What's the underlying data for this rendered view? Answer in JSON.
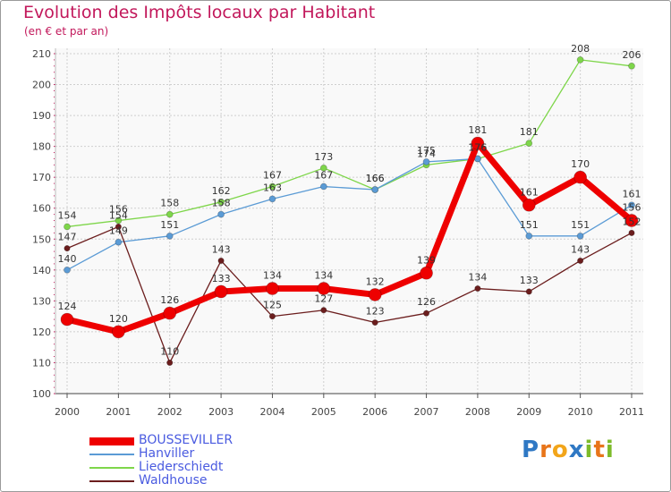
{
  "title": "Evolution des Impôts locaux par Habitant",
  "subtitle": "(en € et par an)",
  "chart_data": {
    "type": "line",
    "title": "Evolution des Impôts locaux par Habitant",
    "subtitle": "(en € et par an)",
    "xlabel": "",
    "ylabel": "",
    "categories": [
      "2000",
      "2001",
      "2002",
      "2003",
      "2004",
      "2005",
      "2006",
      "2007",
      "2008",
      "2009",
      "2010",
      "2011"
    ],
    "y_ticks": [
      "100",
      "110",
      "120",
      "130",
      "140",
      "150",
      "160",
      "170",
      "180",
      "190",
      "200",
      "210"
    ],
    "ylim": [
      100,
      210
    ],
    "grid": true,
    "legend_position": "bottom-left",
    "series": [
      {
        "name": "Liederschiedt",
        "color": "#7ed64a",
        "values": [
          154,
          156,
          158,
          162,
          167,
          173,
          166,
          174,
          176,
          181,
          208,
          206
        ]
      },
      {
        "name": "Hanviller",
        "color": "#5b9bd5",
        "values": [
          140,
          149,
          151,
          158,
          163,
          167,
          166,
          175,
          176,
          151,
          151,
          161
        ]
      },
      {
        "name": "Waldhouse",
        "color": "#6b1d1d",
        "values": [
          147,
          154,
          110,
          143,
          125,
          127,
          123,
          126,
          134,
          133,
          143,
          152
        ]
      },
      {
        "name": "BOUSSEVILLER",
        "color": "#ee0000",
        "values": [
          124,
          120,
          126,
          133,
          134,
          134,
          132,
          139,
          181,
          161,
          170,
          156
        ]
      }
    ],
    "legend": [
      "BOUSSEVILLER",
      "Hanviller",
      "Liederschiedt",
      "Waldhouse"
    ]
  },
  "logo": {
    "letters": [
      "P",
      "r",
      "o",
      "x",
      "i",
      "t",
      "i"
    ],
    "colors": [
      "#2f78c4",
      "#e8751a",
      "#f2a51a",
      "#2f78c4",
      "#7dbb2a",
      "#e8751a",
      "#7dbb2a"
    ]
  }
}
